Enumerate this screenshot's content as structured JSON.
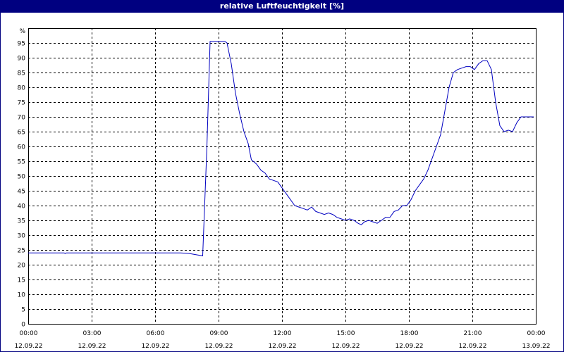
{
  "window": {
    "title": "relative Luftfeuchtigkeit [%]"
  },
  "chart_data": {
    "type": "line",
    "title": "relative Luftfeuchtigkeit [%]",
    "ylabel_unit": "%",
    "ylim": [
      0,
      100
    ],
    "yticks": [
      0,
      5,
      10,
      15,
      20,
      25,
      30,
      35,
      40,
      45,
      50,
      55,
      60,
      65,
      70,
      75,
      80,
      85,
      90,
      95
    ],
    "xlim_hours": [
      0,
      24
    ],
    "xticks": [
      {
        "hour": 0,
        "time": "00:00",
        "date": "12.09.22"
      },
      {
        "hour": 3,
        "time": "03:00",
        "date": "12.09.22"
      },
      {
        "hour": 6,
        "time": "06:00",
        "date": "12.09.22"
      },
      {
        "hour": 9,
        "time": "09:00",
        "date": "12.09.22"
      },
      {
        "hour": 12,
        "time": "12:00",
        "date": "12.09.22"
      },
      {
        "hour": 15,
        "time": "15:00",
        "date": "12.09.22"
      },
      {
        "hour": 18,
        "time": "18:00",
        "date": "12.09.22"
      },
      {
        "hour": 21,
        "time": "21:00",
        "date": "12.09.22"
      },
      {
        "hour": 24,
        "time": "00:00",
        "date": "13.09.22"
      }
    ],
    "grid": true,
    "colors": {
      "line": "#0000c0",
      "grid": "#000000",
      "titlebar": "#000080"
    },
    "series": [
      {
        "x": [
          0,
          1.0,
          1.7,
          1.75,
          1.8,
          2.5,
          4.0,
          5.0,
          6.0,
          7.0,
          7.2,
          7.6,
          8.0,
          8.25,
          8.45,
          8.6,
          8.7,
          9.1,
          9.2,
          9.3,
          9.4,
          9.6,
          9.8,
          10.0,
          10.2,
          10.4,
          10.55,
          10.8,
          11.0,
          11.2,
          11.4,
          11.6,
          11.8,
          12.0,
          12.2,
          12.4,
          12.6,
          12.8,
          13.0,
          13.2,
          13.4,
          13.6,
          13.8,
          14.0,
          14.2,
          14.4,
          14.6,
          14.8,
          15.0,
          15.2,
          15.4,
          15.6,
          15.75,
          15.9,
          16.1,
          16.3,
          16.5,
          16.7,
          16.9,
          17.1,
          17.3,
          17.5,
          17.7,
          17.9,
          18.1,
          18.3,
          18.5,
          18.7,
          18.9,
          19.1,
          19.3,
          19.5,
          19.7,
          19.9,
          20.1,
          20.3,
          20.5,
          20.7,
          20.9,
          21.1,
          21.3,
          21.5,
          21.7,
          21.9,
          22.1,
          22.3,
          22.5,
          22.7,
          22.9,
          23.1,
          23.3,
          23.5,
          23.7,
          23.9
        ],
        "y": [
          24,
          24,
          24,
          23.8,
          24,
          24,
          24,
          24,
          24,
          24,
          24,
          23.8,
          23.3,
          23,
          60,
          95.5,
          95.5,
          95.5,
          95.5,
          95.5,
          95,
          88,
          78,
          71,
          65,
          61,
          55.5,
          54,
          52,
          51,
          49,
          48.5,
          48,
          46,
          44,
          42,
          40,
          39.5,
          39,
          38.5,
          39.5,
          38,
          37.5,
          37,
          37.5,
          37,
          36,
          35.5,
          35,
          35.5,
          35,
          34,
          33.5,
          34.5,
          35,
          34.5,
          34,
          35,
          36,
          36,
          38,
          38.5,
          40,
          40,
          42,
          45,
          47,
          49,
          52,
          56,
          60,
          64,
          72,
          80,
          85,
          86,
          86.5,
          87,
          87,
          86,
          88,
          89,
          89,
          86,
          75,
          67,
          65,
          65.5,
          65,
          68,
          70,
          70,
          70,
          70
        ]
      }
    ]
  }
}
